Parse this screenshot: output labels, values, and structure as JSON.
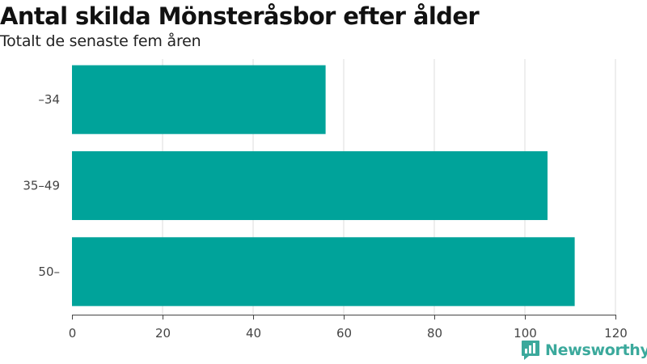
{
  "chart_data": {
    "type": "bar",
    "orientation": "horizontal",
    "title": "Antal skilda Mönsteråsbor efter ålder",
    "subtitle": "Totalt de senaste fem åren",
    "categories": [
      "–34",
      "35–49",
      "50–"
    ],
    "values": [
      56,
      105,
      111
    ],
    "xlim": [
      0,
      120
    ],
    "xticks": [
      0,
      20,
      40,
      60,
      80,
      100,
      120
    ],
    "xlabel": "",
    "ylabel": "",
    "grid": "vertical",
    "legend": "none",
    "bar_color": "#00a39a"
  },
  "brand": {
    "name": "Newsworthy",
    "logo_icon": "newsworthy-bar-chart-logo-icon",
    "color": "#3ba99c"
  }
}
